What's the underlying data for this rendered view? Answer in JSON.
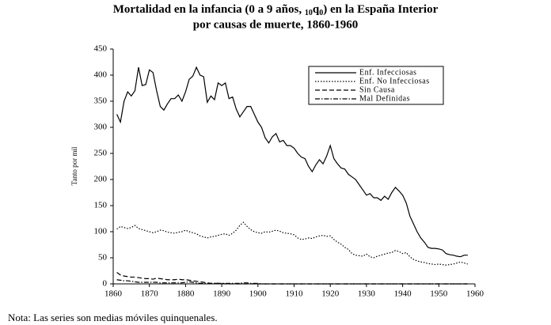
{
  "chart_data": {
    "type": "line",
    "title": [
      "Mortalidad en la infancia (0 a 9 años, ",
      "10",
      "q",
      "0",
      ") en la España Interior",
      "por causas de muerte, 1860-1960"
    ],
    "ylabel": "Tanto por mil",
    "note": "Nota: Las series son medias móviles quinquenales.",
    "legend": "upper right",
    "grid": false,
    "xlim": [
      1860,
      1960
    ],
    "xticks": [
      1860,
      1870,
      1880,
      1890,
      1900,
      1910,
      1920,
      1930,
      1940,
      1950,
      1960
    ],
    "ylim": [
      0,
      450
    ],
    "yticks": [
      0,
      50,
      100,
      150,
      200,
      250,
      300,
      350,
      400,
      450
    ],
    "x": [
      1861,
      1862,
      1863,
      1864,
      1865,
      1866,
      1867,
      1868,
      1869,
      1870,
      1871,
      1872,
      1873,
      1874,
      1875,
      1876,
      1877,
      1878,
      1879,
      1880,
      1881,
      1882,
      1883,
      1884,
      1885,
      1886,
      1887,
      1888,
      1889,
      1890,
      1891,
      1892,
      1893,
      1894,
      1895,
      1896,
      1897,
      1898,
      1899,
      1900,
      1901,
      1902,
      1903,
      1904,
      1905,
      1906,
      1907,
      1908,
      1909,
      1910,
      1911,
      1912,
      1913,
      1914,
      1915,
      1916,
      1917,
      1918,
      1919,
      1920,
      1921,
      1922,
      1923,
      1924,
      1925,
      1926,
      1927,
      1928,
      1929,
      1930,
      1931,
      1932,
      1933,
      1934,
      1935,
      1936,
      1937,
      1938,
      1939,
      1940,
      1941,
      1942,
      1943,
      1944,
      1945,
      1946,
      1947,
      1948,
      1949,
      1950,
      1951,
      1952,
      1953,
      1954,
      1955,
      1956,
      1957,
      1958
    ],
    "series": [
      {
        "name": "Enf. Infecciosas",
        "color": "#000000",
        "dash": "solid",
        "values": [
          325,
          310,
          350,
          368,
          360,
          370,
          415,
          380,
          382,
          410,
          405,
          370,
          340,
          333,
          345,
          355,
          355,
          362,
          350,
          368,
          392,
          398,
          415,
          400,
          397,
          348,
          360,
          353,
          385,
          380,
          385,
          355,
          358,
          335,
          320,
          330,
          340,
          340,
          325,
          310,
          300,
          280,
          270,
          282,
          288,
          272,
          275,
          265,
          265,
          260,
          250,
          243,
          240,
          225,
          215,
          228,
          238,
          230,
          245,
          265,
          240,
          230,
          222,
          220,
          210,
          205,
          200,
          190,
          180,
          170,
          173,
          165,
          165,
          160,
          168,
          162,
          175,
          185,
          178,
          170,
          155,
          130,
          115,
          100,
          88,
          80,
          70,
          68,
          68,
          67,
          65,
          58,
          56,
          55,
          53,
          52,
          55,
          55
        ]
      },
      {
        "name": "Enf. No Infecciosas",
        "color": "#000000",
        "dash": "dotted",
        "values": [
          105,
          110,
          108,
          106,
          108,
          112,
          106,
          104,
          102,
          100,
          98,
          100,
          103,
          102,
          99,
          98,
          97,
          99,
          100,
          103,
          100,
          98,
          96,
          92,
          90,
          88,
          90,
          91,
          93,
          95,
          96,
          93,
          97,
          103,
          112,
          118,
          110,
          104,
          100,
          98,
          97,
          100,
          99,
          101,
          103,
          101,
          98,
          97,
          96,
          94,
          88,
          85,
          86,
          88,
          87,
          90,
          92,
          93,
          91,
          92,
          85,
          80,
          76,
          70,
          66,
          58,
          55,
          54,
          53,
          57,
          52,
          50,
          53,
          55,
          57,
          59,
          60,
          64,
          62,
          58,
          60,
          52,
          47,
          44,
          42,
          41,
          39,
          38,
          37,
          38,
          37,
          36,
          37,
          38,
          40,
          42,
          40,
          38
        ]
      },
      {
        "name": "Sin Causa",
        "color": "#000000",
        "dash": "dashed",
        "values": [
          22,
          17,
          15,
          14,
          13,
          13,
          12,
          11,
          10,
          10,
          9,
          11,
          10,
          9,
          8,
          8,
          8,
          9,
          8,
          8,
          7,
          6,
          5,
          4,
          3,
          2,
          1,
          1,
          1,
          1,
          0,
          0,
          0,
          0,
          0,
          0,
          0,
          0,
          0,
          0,
          0,
          0,
          0,
          0,
          0,
          0,
          0,
          0,
          0,
          0,
          0,
          0,
          0,
          0,
          0,
          0,
          0,
          0,
          0,
          0,
          0,
          0,
          0,
          0,
          0,
          0,
          0,
          0,
          0,
          0,
          0,
          0,
          0,
          0,
          0,
          0,
          0,
          0,
          0,
          0,
          0,
          0,
          0,
          0,
          0,
          0,
          0,
          0,
          0,
          0,
          0,
          0,
          0,
          0,
          0,
          0,
          0,
          0
        ]
      },
      {
        "name": "Mal Definidas",
        "color": "#000000",
        "dash": "dashdot",
        "values": [
          8,
          7,
          6,
          6,
          5,
          4,
          3,
          3,
          3,
          3,
          3,
          3,
          2,
          2,
          2,
          2,
          2,
          2,
          2,
          3,
          4,
          3,
          2,
          1,
          1,
          1,
          1,
          1,
          1,
          1,
          1,
          1,
          1,
          1,
          1,
          2,
          2,
          1,
          1,
          1,
          0,
          0,
          0,
          0,
          0,
          0,
          0,
          0,
          0,
          0,
          0,
          0,
          0,
          0,
          0,
          0,
          0,
          0,
          0,
          0,
          0,
          0,
          0,
          0,
          0,
          0,
          0,
          0,
          0,
          0,
          0,
          0,
          0,
          0,
          0,
          0,
          0,
          0,
          0,
          0,
          0,
          0,
          0,
          0,
          0,
          0,
          0,
          0,
          0,
          0,
          0,
          0,
          0,
          0,
          0,
          0,
          0,
          0
        ]
      }
    ]
  }
}
